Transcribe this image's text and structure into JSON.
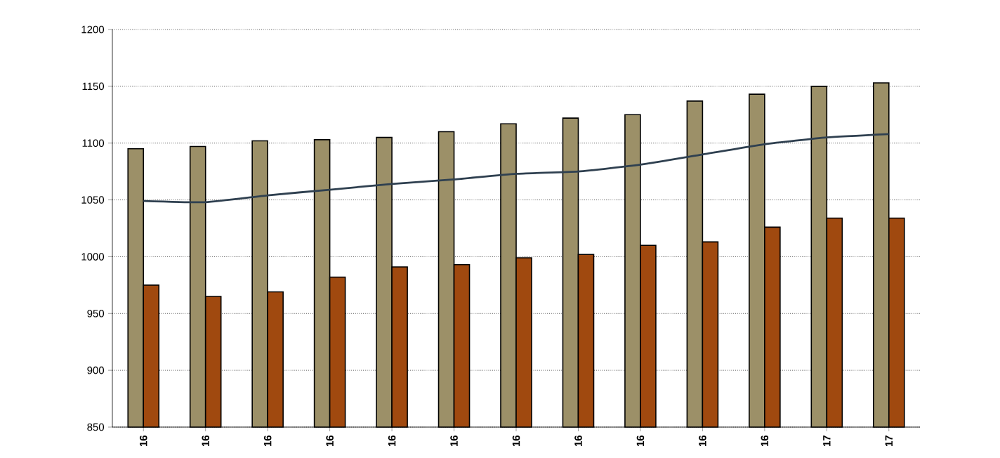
{
  "chart_data": {
    "type": "bar",
    "categories": [
      "16",
      "16",
      "16",
      "16",
      "16",
      "16",
      "16",
      "16",
      "16",
      "16",
      "16",
      "17",
      "17"
    ],
    "series": [
      {
        "color": "#9c9068",
        "values": [
          1095,
          1097,
          1102,
          1103,
          1105,
          1110,
          1117,
          1122,
          1125,
          1137,
          1143,
          1150,
          1153
        ]
      },
      {
        "color": "#a0490f",
        "values": [
          975,
          965,
          969,
          982,
          991,
          993,
          999,
          1002,
          1010,
          1013,
          1026,
          1034,
          1034
        ]
      },
      {
        "type": "line",
        "color": "#2f4050",
        "values": [
          1049,
          1048,
          1054,
          1059,
          1064,
          1068,
          1073,
          1075,
          1081,
          1090,
          1099,
          1105,
          1108
        ]
      }
    ],
    "ylim": [
      850,
      1200
    ],
    "yticks": [
      850,
      900,
      950,
      1000,
      1050,
      1100,
      1150,
      1200
    ],
    "grid": "y"
  }
}
